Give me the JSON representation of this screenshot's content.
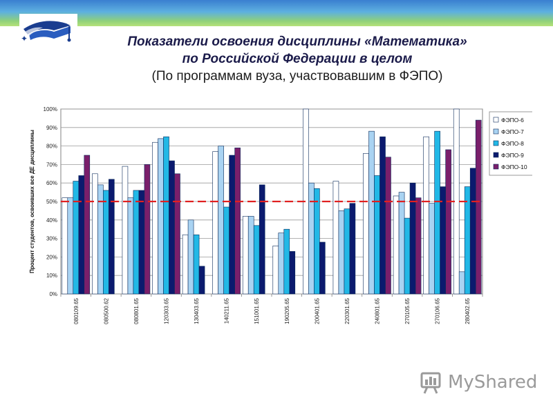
{
  "header": {
    "title_line1": "Показатели освоения дисциплины «Математика»",
    "title_line2": "по Российской Федерации в целом",
    "subtitle": "(По программам вуза, участвовавшим в ФЭПО)"
  },
  "logo": {
    "icon": "graduation-cap-icon"
  },
  "watermark": {
    "text": "MyShared",
    "icon": "presentation-board-icon"
  },
  "colors": {
    "top_band_start": "#3a7fd0",
    "top_band_end": "#b6e27a",
    "title": "#1b1b4a",
    "threshold_line": "#e02020"
  },
  "chart_data": {
    "type": "bar",
    "ylabel": "Процент студентов, освоивших все ДЕ дисциплины",
    "ylim": [
      0,
      100
    ],
    "y_ticks": [
      "0%",
      "10%",
      "20%",
      "30%",
      "40%",
      "50%",
      "60%",
      "70%",
      "80%",
      "90%",
      "100%"
    ],
    "grid": true,
    "legend_position": "right",
    "categories": [
      "080109.65",
      "080500.62",
      "080801.65",
      "120303.65",
      "130403.65",
      "140211.65",
      "151001.65",
      "190205.65",
      "200401.65",
      "220301.65",
      "240801.65",
      "270105.65",
      "270106.65",
      "280402.65"
    ],
    "series": [
      {
        "name": "ФЭПО-6",
        "color": "#ffffff",
        "values": [
          52,
          65,
          69,
          82,
          32,
          77,
          42,
          26,
          100,
          61,
          76,
          53,
          85,
          100
        ]
      },
      {
        "name": "ФЭПО-7",
        "color": "#a9d3f2",
        "values": [
          52,
          59,
          52,
          84,
          40,
          80,
          42,
          33,
          60,
          45,
          88,
          55,
          49,
          12
        ]
      },
      {
        "name": "ФЭПО-8",
        "color": "#22b8e6",
        "values": [
          61,
          56,
          56,
          85,
          32,
          47,
          37,
          35,
          57,
          46,
          64,
          41,
          88,
          58
        ]
      },
      {
        "name": "ФЭПО-9",
        "color": "#0b1a6e",
        "values": [
          64,
          62,
          56,
          72,
          15,
          75,
          59,
          23,
          28,
          49,
          85,
          60,
          58,
          68
        ]
      },
      {
        "name": "ФЭПО-10",
        "color": "#7a1f6b",
        "values": [
          75,
          null,
          70,
          65,
          null,
          79,
          null,
          null,
          null,
          null,
          74,
          52,
          78,
          94
        ]
      }
    ],
    "reference_line": {
      "value": 50,
      "style": "dashed",
      "color": "#e02020"
    }
  }
}
